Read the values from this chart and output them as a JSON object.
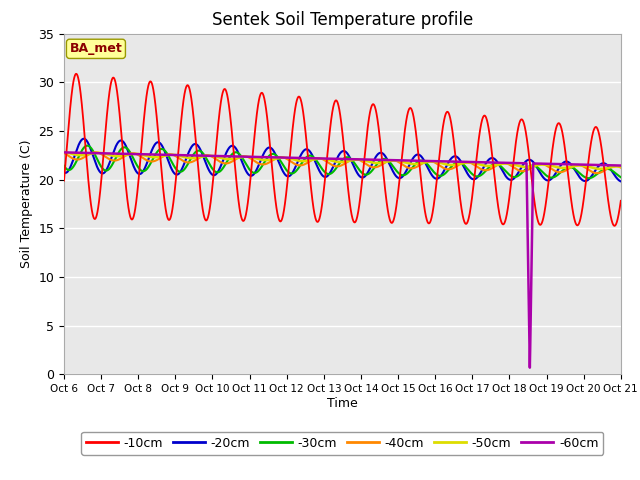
{
  "title": "Sentek Soil Temperature profile",
  "xlabel": "Time",
  "ylabel": "Soil Temperature (C)",
  "xlim": [
    0,
    15
  ],
  "ylim": [
    0,
    35
  ],
  "yticks": [
    0,
    5,
    10,
    15,
    20,
    25,
    30,
    35
  ],
  "xtick_labels": [
    "Oct 6",
    "Oct 7",
    "Oct 8",
    "Oct 9",
    "Oct 10",
    "Oct 11",
    "Oct 12",
    "Oct 13",
    "Oct 14",
    "Oct 15",
    "Oct 16",
    "Oct 17",
    "Oct 18",
    "Oct 19",
    "Oct 20",
    "Oct 21"
  ],
  "annotation_text": "BA_met",
  "annotation_color": "#8B0000",
  "annotation_bg": "#FFFF99",
  "fig_bg": "#FFFFFF",
  "plot_bg": "#E8E8E8",
  "colors": {
    "-10cm": "#FF0000",
    "-20cm": "#0000CC",
    "-30cm": "#00BB00",
    "-40cm": "#FF8800",
    "-50cm": "#DDDD00",
    "-60cm": "#AA00AA"
  },
  "legend_labels": [
    "-10cm",
    "-20cm",
    "-30cm",
    "-40cm",
    "-50cm",
    "-60cm"
  ]
}
